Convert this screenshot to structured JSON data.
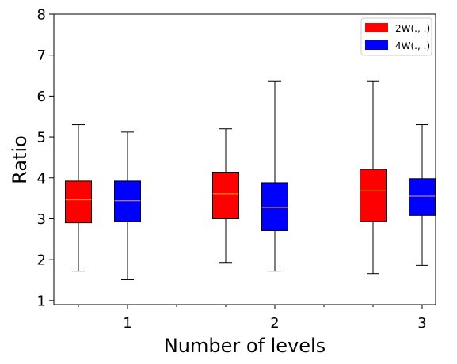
{
  "chart_data": {
    "type": "box",
    "xlabel": "Number of levels",
    "ylabel": "Ratio",
    "categories": [
      "1",
      "2",
      "3"
    ],
    "ylim": [
      0.9,
      8.0
    ],
    "yticks": [
      1,
      2,
      3,
      4,
      5,
      6,
      7,
      8
    ],
    "legend_placement": "top-right",
    "grid": false,
    "median_color": "#f5a623",
    "series": [
      {
        "name": "2W(., .)",
        "color": "#ff0000",
        "boxes": [
          {
            "min": 1.72,
            "q1": 2.9,
            "median": 3.46,
            "q3": 3.92,
            "max": 5.3
          },
          {
            "min": 1.93,
            "q1": 3.0,
            "median": 3.61,
            "q3": 4.14,
            "max": 5.2
          },
          {
            "min": 1.66,
            "q1": 2.93,
            "median": 3.68,
            "q3": 4.21,
            "max": 6.37
          }
        ]
      },
      {
        "name": "4W(., .)",
        "color": "#0000ff",
        "boxes": [
          {
            "min": 1.51,
            "q1": 2.93,
            "median": 3.44,
            "q3": 3.92,
            "max": 5.12
          },
          {
            "min": 1.72,
            "q1": 2.71,
            "median": 3.28,
            "q3": 3.88,
            "max": 6.37
          },
          {
            "min": 1.86,
            "q1": 3.08,
            "median": 3.55,
            "q3": 3.98,
            "max": 5.3
          }
        ]
      }
    ]
  }
}
